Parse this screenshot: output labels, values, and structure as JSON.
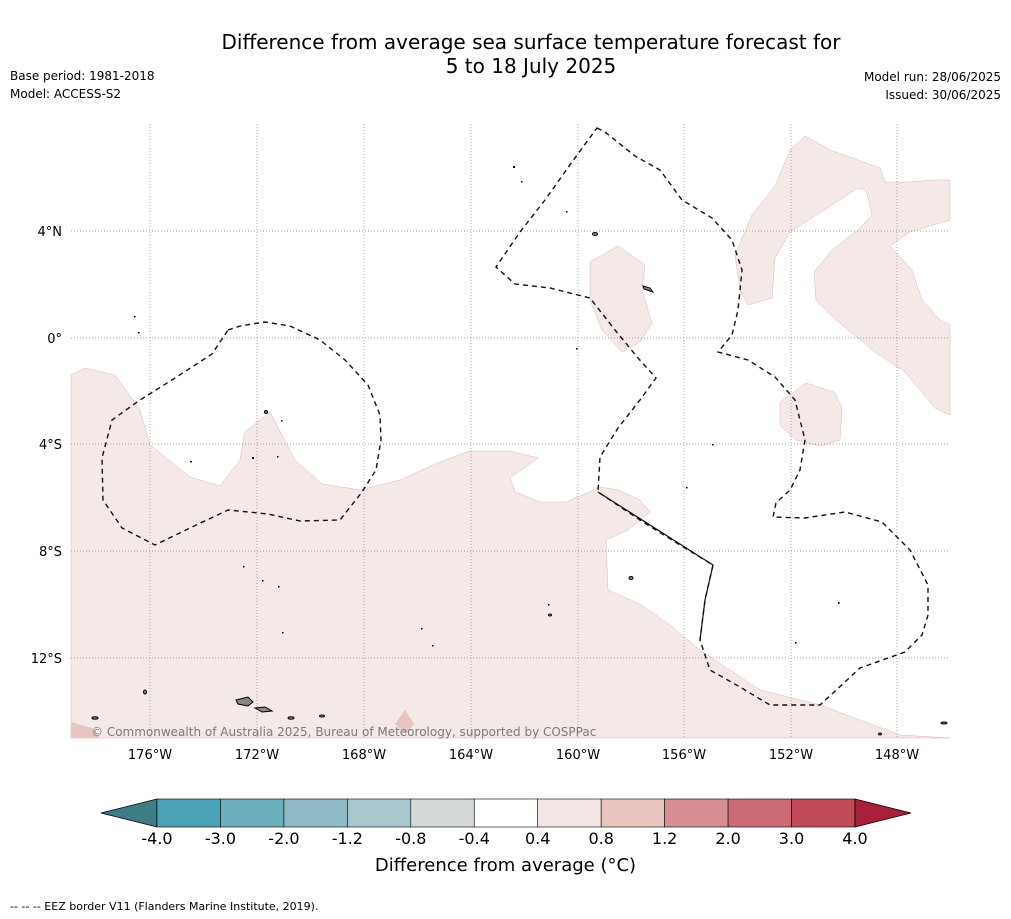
{
  "title_line1": "Difference from average sea surface temperature forecast for",
  "title_line2": "5 to 18 July 2025",
  "base_period": "Base period: 1981-2018",
  "model": "Model: ACCESS-S2",
  "model_run": "Model run: 28/06/2025",
  "issued": "Issued: 30/06/2025",
  "copyright": "© Commonwealth of Australia 2025, Bureau of Meteorology, supported by COSPPac",
  "lat_labels": [
    "4°N",
    "0°",
    "4°S",
    "8°S",
    "12°S"
  ],
  "lon_labels": [
    "176°W",
    "172°W",
    "168°W",
    "164°W",
    "160°W",
    "156°W",
    "152°W",
    "148°W"
  ],
  "colorbar": {
    "ticks": [
      "-4.0",
      "-3.0",
      "-2.0",
      "-1.2",
      "-0.8",
      "-0.4",
      "0.4",
      "0.8",
      "1.2",
      "2.0",
      "3.0",
      "4.0"
    ],
    "colors": [
      "#3e7d86",
      "#4aa3b4",
      "#6daebd",
      "#8fbac5",
      "#a9c8cd",
      "#d4d8d8",
      "#ffffff",
      "#f4e6e5",
      "#e8c5c0",
      "#d78f94",
      "#cc6b75",
      "#c04a58",
      "#a8203a"
    ],
    "title": "Difference from average (°C)"
  },
  "footer": "--  --  -- EEZ border V11 (Flanders Marine Institute, 2019)."
}
